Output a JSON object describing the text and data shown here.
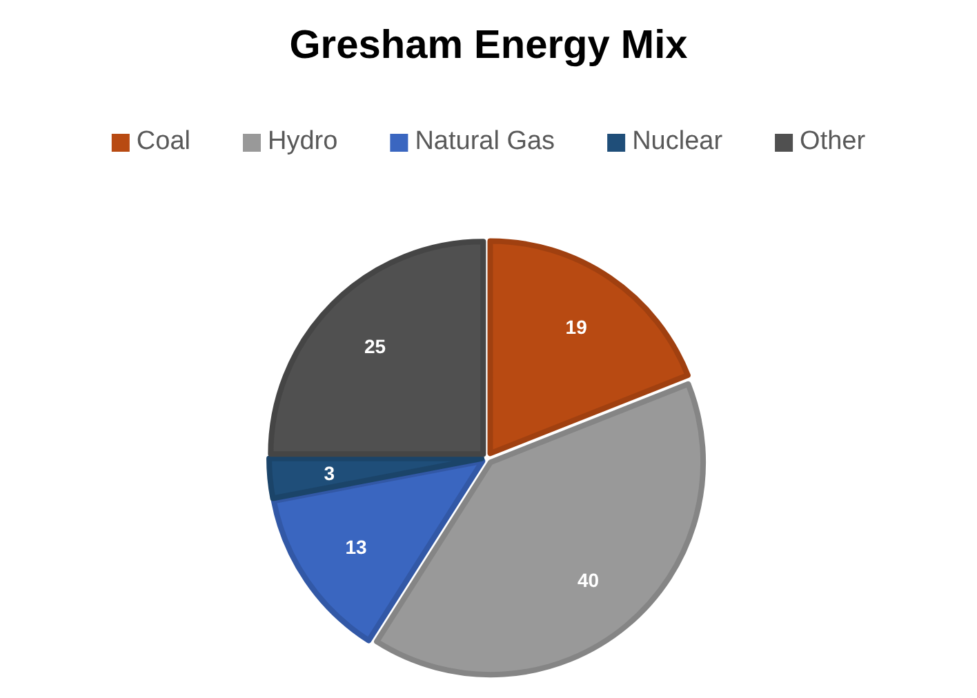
{
  "chart_data": {
    "type": "pie",
    "title": "Gresham Energy Mix",
    "categories": [
      "Coal",
      "Hydro",
      "Natural Gas",
      "Nuclear",
      "Other"
    ],
    "values": [
      19,
      40,
      13,
      3,
      25
    ],
    "colors": [
      "#b84a12",
      "#999999",
      "#3a66c0",
      "#1f4e79",
      "#505050"
    ],
    "data_labels": true,
    "legend": "top"
  }
}
